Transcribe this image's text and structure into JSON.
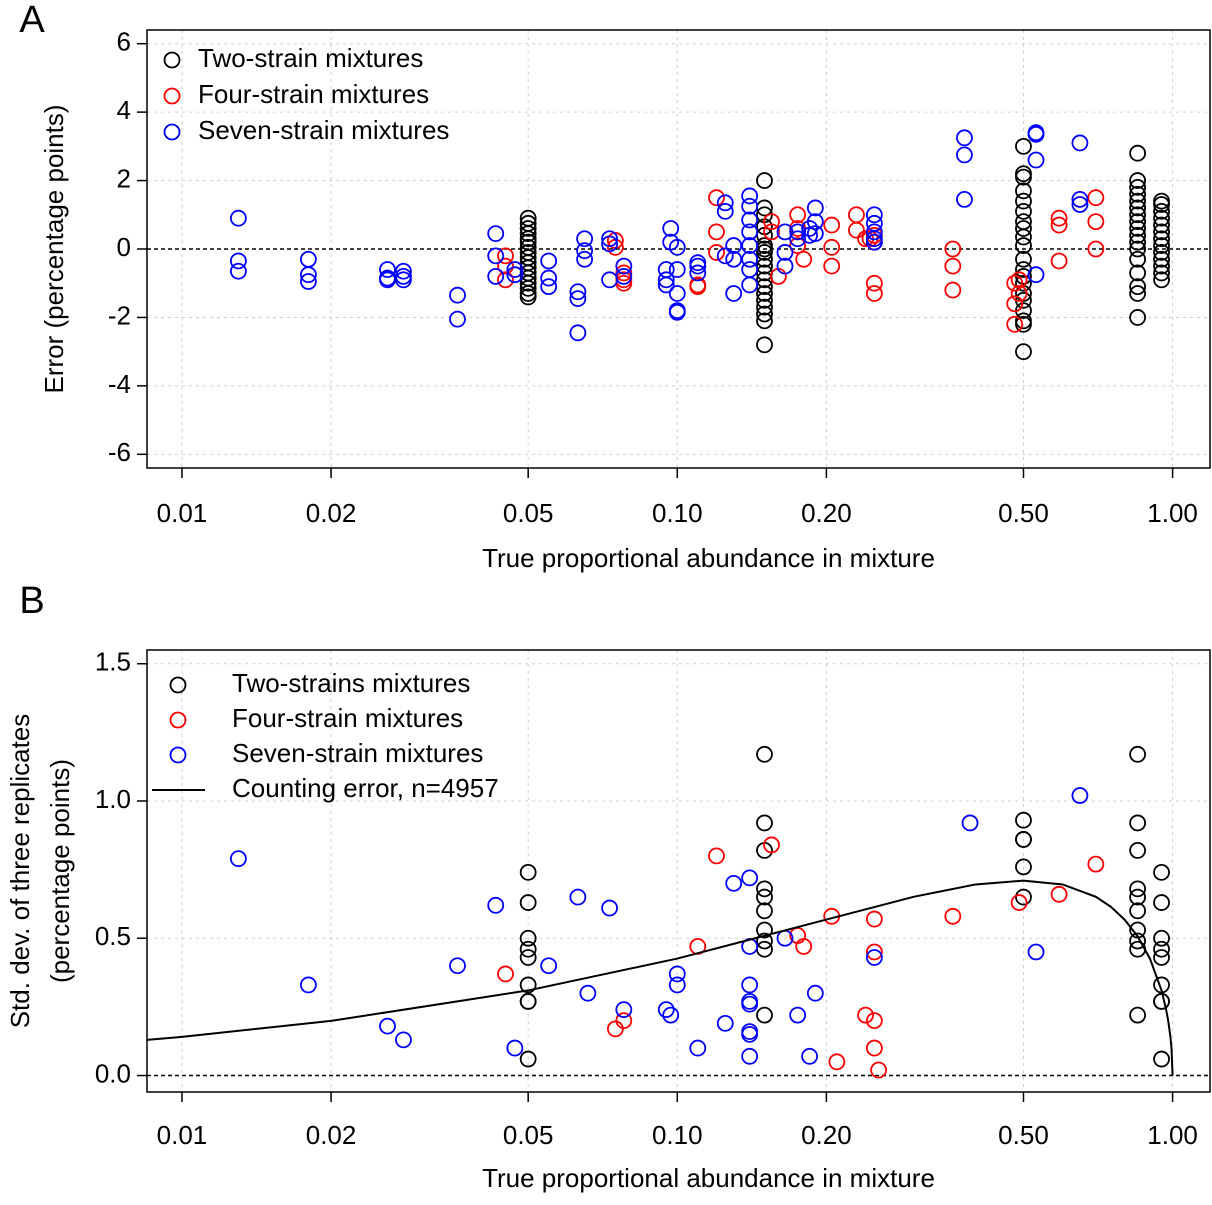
{
  "chart_data": [
    {
      "type": "scatter",
      "panel": "A",
      "xlabel": "True proportional abundance in mixture",
      "ylabel": [
        "Error (percentage points)"
      ],
      "log_x": true,
      "grid": true,
      "hline": 0,
      "legend": "top-left",
      "xlim": [
        0.0085,
        1.19
      ],
      "ylim": [
        -6.4,
        6.4
      ],
      "xticks": [
        0.01,
        0.02,
        0.05,
        {
          "value": 0.1,
          "label": "0.10"
        },
        {
          "value": 0.2,
          "label": "0.20"
        },
        {
          "value": 0.5,
          "label": "0.50"
        },
        {
          "value": 1,
          "label": "1.00"
        }
      ],
      "yticks": [
        -6,
        -4,
        -2,
        0,
        2,
        4,
        6
      ],
      "series": [
        {
          "name": "Two-strain mixtures",
          "color": "#000000",
          "x": [
            0.05,
            0.05,
            0.05,
            0.05,
            0.05,
            0.05,
            0.05,
            0.05,
            0.05,
            0.05,
            0.05,
            0.05,
            0.05,
            0.05,
            0.05,
            0.05,
            0.05,
            0.15,
            0.15,
            0.15,
            0.15,
            0.15,
            0.15,
            0.15,
            0.15,
            0.15,
            0.15,
            0.15,
            0.15,
            0.15,
            0.15,
            0.15,
            0.15,
            0.15,
            0.15,
            0.15,
            0.5,
            0.5,
            0.5,
            0.5,
            0.5,
            0.5,
            0.5,
            0.5,
            0.5,
            0.5,
            0.5,
            0.5,
            0.5,
            0.5,
            0.5,
            0.5,
            0.5,
            0.5,
            0.5,
            0.5,
            0.85,
            0.85,
            0.85,
            0.85,
            0.85,
            0.85,
            0.85,
            0.85,
            0.85,
            0.85,
            0.85,
            0.85,
            0.85,
            0.85,
            0.85,
            0.85,
            0.85,
            0.95,
            0.95,
            0.95,
            0.95,
            0.95,
            0.95,
            0.95,
            0.95,
            0.95,
            0.95,
            0.95,
            0.95,
            0.95
          ],
          "values": [
            0.9,
            0.75,
            0.6,
            0.45,
            0.3,
            0.2,
            0.05,
            -0.1,
            -0.25,
            -0.4,
            -0.55,
            -0.7,
            -0.85,
            -1.0,
            -1.15,
            -1.3,
            -1.4,
            2.0,
            1.2,
            1.0,
            0.65,
            0.4,
            0.1,
            0,
            -0.1,
            -0.3,
            -0.5,
            -0.7,
            -0.9,
            -1.1,
            -1.3,
            -1.5,
            -1.7,
            -1.9,
            -2.1,
            -2.8,
            3.0,
            2.2,
            2.1,
            1.7,
            1.4,
            1.1,
            0.8,
            0.6,
            0.35,
            0.1,
            -0.3,
            -0.6,
            -0.8,
            -1.0,
            -1.3,
            -1.5,
            -1.8,
            -2.1,
            -2.2,
            -3.0,
            2.8,
            2.0,
            1.8,
            1.6,
            1.4,
            1.2,
            1.0,
            0.8,
            0.6,
            0.4,
            0.2,
            0,
            -0.3,
            -0.7,
            -1.1,
            -1.3,
            -2.0,
            1.4,
            1.3,
            1.1,
            0.9,
            0.7,
            0.5,
            0.3,
            0.1,
            -0.1,
            -0.3,
            -0.5,
            -0.7,
            -0.9
          ]
        },
        {
          "name": "Four-strain mixtures",
          "color": "#ff0000",
          "x": [
            0.045,
            0.045,
            0.045,
            0.075,
            0.075,
            0.078,
            0.078,
            0.078,
            0.11,
            0.11,
            0.12,
            0.12,
            0.12,
            0.155,
            0.155,
            0.16,
            0.175,
            0.175,
            0.175,
            0.18,
            0.205,
            0.205,
            0.205,
            0.23,
            0.23,
            0.24,
            0.245,
            0.25,
            0.25,
            0.25,
            0.25,
            0.36,
            0.36,
            0.36,
            0.48,
            0.48,
            0.48,
            0.49,
            0.49,
            0.59,
            0.59,
            0.59,
            0.7,
            0.7,
            0.7
          ],
          "values": [
            -0.2,
            -0.5,
            -0.9,
            0.25,
            0.05,
            -0.7,
            -0.9,
            -1.0,
            -1.05,
            -1.1,
            1.5,
            0.5,
            -0.1,
            0.8,
            0.5,
            -0.8,
            1.0,
            0.6,
            0.1,
            -0.3,
            0.7,
            0.05,
            -0.5,
            1.0,
            0.55,
            0.3,
            0.3,
            0.4,
            0.2,
            -1.0,
            -1.3,
            0.0,
            -0.5,
            -1.2,
            -1.0,
            -1.6,
            -2.2,
            -1.3,
            -0.9,
            0.9,
            0.7,
            -0.35,
            1.5,
            0.8,
            0.0
          ]
        },
        {
          "name": "Seven-strain mixtures",
          "color": "#0000ff",
          "x": [
            0.013,
            0.013,
            0.013,
            0.018,
            0.018,
            0.018,
            0.026,
            0.026,
            0.026,
            0.028,
            0.028,
            0.028,
            0.036,
            0.036,
            0.043,
            0.043,
            0.043,
            0.047,
            0.047,
            0.055,
            0.055,
            0.055,
            0.063,
            0.063,
            0.063,
            0.065,
            0.065,
            0.065,
            0.073,
            0.073,
            0.073,
            0.078,
            0.078,
            0.095,
            0.095,
            0.095,
            0.097,
            0.097,
            0.1,
            0.1,
            0.1,
            0.1,
            0.1,
            0.11,
            0.11,
            0.11,
            0.125,
            0.125,
            0.125,
            0.13,
            0.13,
            0.13,
            0.14,
            0.14,
            0.14,
            0.14,
            0.14,
            0.14,
            0.14,
            0.14,
            0.165,
            0.165,
            0.165,
            0.175,
            0.175,
            0.185,
            0.185,
            0.19,
            0.19,
            0.19,
            0.25,
            0.25,
            0.25,
            0.25,
            0.25,
            0.38,
            0.38,
            0.38,
            0.53,
            0.53,
            0.53,
            0.53,
            0.65,
            0.65,
            0.65
          ],
          "values": [
            0.9,
            -0.35,
            -0.65,
            -0.3,
            -0.75,
            -0.95,
            -0.6,
            -0.85,
            -0.9,
            -0.65,
            -0.8,
            -0.9,
            -1.35,
            -2.05,
            0.45,
            -0.2,
            -0.8,
            -0.6,
            -0.75,
            -0.35,
            -0.85,
            -1.1,
            -1.25,
            -1.45,
            -2.45,
            0.3,
            -0.05,
            -0.3,
            0.3,
            0.15,
            -0.9,
            -0.5,
            -0.8,
            -0.6,
            -0.9,
            -1.05,
            0.6,
            0.2,
            0.05,
            -0.6,
            -1.3,
            -1.8,
            -1.85,
            -0.4,
            -0.5,
            -0.7,
            1.35,
            1.1,
            -0.2,
            0.1,
            -0.3,
            -1.3,
            1.55,
            1.25,
            0.85,
            0.5,
            0.1,
            -0.3,
            -0.6,
            -1.05,
            0.5,
            -0.1,
            -0.5,
            0.5,
            0.3,
            0.6,
            0.4,
            1.2,
            0.8,
            0.45,
            1.0,
            0.75,
            0.5,
            0.3,
            0.2,
            3.25,
            2.75,
            1.45,
            3.4,
            3.35,
            2.6,
            -0.75,
            3.1,
            1.45,
            1.3
          ]
        }
      ]
    },
    {
      "type": "scatter",
      "panel": "B",
      "xlabel": "True proportional abundance in mixture",
      "ylabel": [
        "Std. dev. of three replicates",
        "(percentage points)"
      ],
      "log_x": true,
      "grid": true,
      "hline": 0,
      "legend": "top-left",
      "xlim": [
        0.0085,
        1.19
      ],
      "ylim": [
        -0.06,
        1.55
      ],
      "xticks": [
        0.01,
        0.02,
        0.05,
        {
          "value": 0.1,
          "label": "0.10"
        },
        {
          "value": 0.2,
          "label": "0.20"
        },
        {
          "value": 0.5,
          "label": "0.50"
        },
        {
          "value": 1,
          "label": "1.00"
        }
      ],
      "yticks": [
        {
          "value": 0,
          "label": "0.0"
        },
        0.5,
        {
          "value": 1,
          "label": "1.0"
        },
        1.5
      ],
      "series": [
        {
          "name": "Two-strains mixtures",
          "color": "#000000",
          "x": [
            0.05,
            0.05,
            0.05,
            0.05,
            0.05,
            0.05,
            0.05,
            0.05,
            0.05,
            0.15,
            0.15,
            0.15,
            0.15,
            0.15,
            0.15,
            0.15,
            0.15,
            0.15,
            0.15,
            0.5,
            0.5,
            0.5,
            0.5,
            0.5,
            0.85,
            0.85,
            0.85,
            0.85,
            0.85,
            0.85,
            0.85,
            0.85,
            0.85,
            0.85,
            0.95,
            0.95,
            0.95,
            0.95,
            0.95,
            0.95,
            0.95,
            0.95,
            0.95
          ],
          "values": [
            0.74,
            0.63,
            0.5,
            0.46,
            0.43,
            0.33,
            0.27,
            0.27,
            0.06,
            1.17,
            0.92,
            0.82,
            0.68,
            0.65,
            0.6,
            0.53,
            0.49,
            0.46,
            0.22,
            0.93,
            0.86,
            0.86,
            0.76,
            0.65,
            1.17,
            0.92,
            0.82,
            0.68,
            0.65,
            0.6,
            0.53,
            0.49,
            0.46,
            0.22,
            0.74,
            0.63,
            0.5,
            0.46,
            0.43,
            0.33,
            0.27,
            0.27,
            0.06
          ]
        },
        {
          "name": "Four-strain mixtures",
          "color": "#ff0000",
          "x": [
            0.045,
            0.075,
            0.078,
            0.11,
            0.12,
            0.155,
            0.175,
            0.18,
            0.205,
            0.21,
            0.24,
            0.25,
            0.25,
            0.25,
            0.25,
            0.255,
            0.36,
            0.49,
            0.59,
            0.7
          ],
          "values": [
            0.37,
            0.17,
            0.2,
            0.47,
            0.8,
            0.84,
            0.51,
            0.47,
            0.58,
            0.05,
            0.22,
            0.57,
            0.45,
            0.2,
            0.1,
            0.02,
            0.58,
            0.63,
            0.66,
            0.77
          ]
        },
        {
          "name": "Seven-strain mixtures",
          "color": "#0000ff",
          "x": [
            0.013,
            0.018,
            0.026,
            0.028,
            0.036,
            0.043,
            0.047,
            0.055,
            0.063,
            0.066,
            0.073,
            0.078,
            0.095,
            0.097,
            0.1,
            0.1,
            0.11,
            0.125,
            0.13,
            0.14,
            0.14,
            0.14,
            0.14,
            0.14,
            0.14,
            0.14,
            0.14,
            0.165,
            0.175,
            0.185,
            0.19,
            0.25,
            0.39,
            0.53,
            0.65
          ],
          "values": [
            0.79,
            0.33,
            0.18,
            0.13,
            0.4,
            0.62,
            0.1,
            0.4,
            0.65,
            0.3,
            0.61,
            0.24,
            0.24,
            0.22,
            0.37,
            0.33,
            0.1,
            0.19,
            0.7,
            0.72,
            0.47,
            0.33,
            0.27,
            0.26,
            0.16,
            0.15,
            0.07,
            0.5,
            0.22,
            0.07,
            0.3,
            0.43,
            0.92,
            0.45,
            1.02
          ]
        },
        {
          "name": "Counting error, n=4957",
          "color": "#000000",
          "type": "line",
          "x": [
            0.0085,
            0.01,
            0.02,
            0.05,
            0.1,
            0.2,
            0.3,
            0.4,
            0.5,
            0.6,
            0.7,
            0.75,
            0.8,
            0.85,
            0.9,
            0.95,
            0.97,
            0.98,
            0.99,
            0.995,
            1.0
          ],
          "values": [
            0.13,
            0.141,
            0.199,
            0.31,
            0.426,
            0.568,
            0.651,
            0.696,
            0.71,
            0.696,
            0.651,
            0.615,
            0.568,
            0.507,
            0.426,
            0.31,
            0.242,
            0.199,
            0.141,
            0.1,
            0
          ]
        }
      ]
    }
  ]
}
